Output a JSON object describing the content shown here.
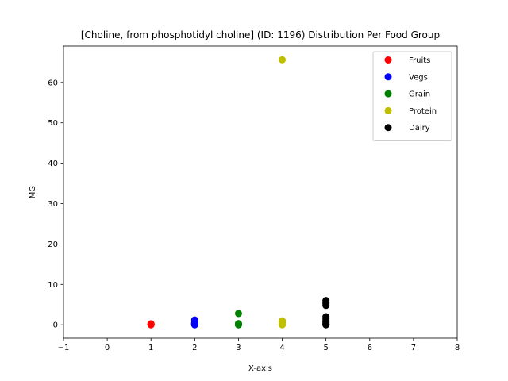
{
  "chart_data": {
    "type": "scatter",
    "title": "[Choline, from phosphotidyl choline] (ID: 1196) Distribution Per Food Group",
    "xlabel": "X-axis",
    "ylabel": "MG",
    "xlim": [
      -1,
      8
    ],
    "ylim": [
      -3.3,
      69.0
    ],
    "xticks": [
      -1,
      0,
      1,
      2,
      3,
      4,
      5,
      6,
      7,
      8
    ],
    "yticks": [
      0,
      10,
      20,
      30,
      40,
      50,
      60
    ],
    "grid": false,
    "legend_position": "top-right",
    "series": [
      {
        "name": "Fruits",
        "color": "#ff0000",
        "x": [
          1,
          1,
          1,
          1,
          1,
          1
        ],
        "y": [
          0,
          0.05,
          0.1,
          0.15,
          0.2,
          0.25
        ]
      },
      {
        "name": "Vegs",
        "color": "#0000ff",
        "x": [
          2,
          2,
          2,
          2,
          2,
          2,
          2,
          2
        ],
        "y": [
          0,
          0.05,
          0.1,
          0.2,
          0.3,
          0.4,
          0.6,
          1.2
        ]
      },
      {
        "name": "Grain",
        "color": "#008000",
        "x": [
          3,
          3,
          3,
          3,
          3,
          3
        ],
        "y": [
          0,
          0.05,
          0.1,
          0.2,
          0.3,
          2.8
        ]
      },
      {
        "name": "Protein",
        "color": "#bfbf00",
        "x": [
          4,
          4,
          4,
          4,
          4,
          4,
          4,
          4
        ],
        "y": [
          0,
          0.05,
          0.1,
          0.2,
          0.4,
          0.6,
          1.0,
          65.6
        ]
      },
      {
        "name": "Dairy",
        "color": "#000000",
        "x": [
          5,
          5,
          5,
          5,
          5,
          5,
          5,
          5,
          5,
          5,
          5,
          5
        ],
        "y": [
          0,
          0.1,
          0.2,
          0.5,
          0.8,
          1.0,
          1.5,
          2.0,
          4.8,
          5.2,
          5.6,
          6.0
        ]
      }
    ]
  }
}
